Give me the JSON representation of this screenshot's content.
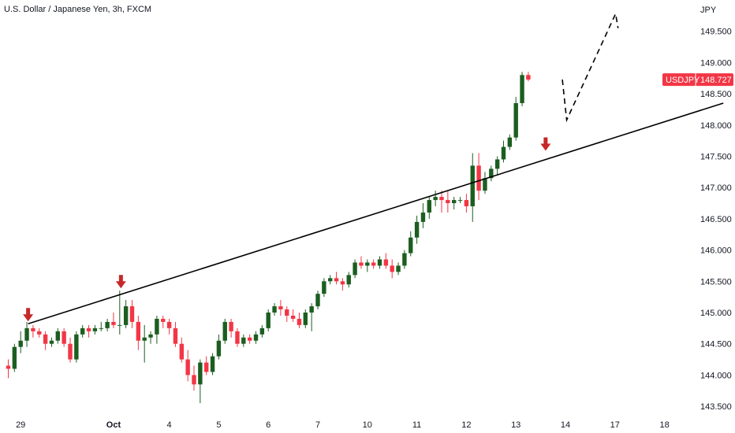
{
  "chart_data": {
    "type": "candlestick",
    "title": "U.S. Dollar / Japanese Yen, 3h, FXCM",
    "currency_label": "JPY",
    "symbol_badge": "USDJPY",
    "last_price_label": "148.727",
    "last_price": 148.727,
    "ylim": [
      143.35,
      150.0
    ],
    "y_ticks": [
      "149.500",
      "149.000",
      "148.500",
      "148.000",
      "147.500",
      "147.000",
      "146.500",
      "146.000",
      "145.500",
      "145.000",
      "144.500",
      "144.000",
      "143.500"
    ],
    "y_tick_values": [
      149.5,
      149.0,
      148.5,
      148.0,
      147.5,
      147.0,
      146.5,
      146.0,
      145.5,
      145.0,
      144.5,
      144.0,
      143.5
    ],
    "x_ticks": [
      "29",
      "Oct",
      "4",
      "5",
      "6",
      "7",
      "10",
      "11",
      "12",
      "13",
      "14",
      "17",
      "18"
    ],
    "x_tick_index": [
      2,
      17,
      26,
      34,
      42,
      50,
      58,
      66,
      74,
      82,
      90,
      98,
      106
    ],
    "colors": {
      "up": "#1b5e20",
      "down": "#f23645",
      "line": "#000000",
      "arrow": "#c62828",
      "badge": "#f23645"
    },
    "candles": [
      [
        144.15,
        144.25,
        143.95,
        144.1
      ],
      [
        144.1,
        144.5,
        144.05,
        144.45
      ],
      [
        144.45,
        144.7,
        144.35,
        144.55
      ],
      [
        144.55,
        144.85,
        144.45,
        144.75
      ],
      [
        144.75,
        144.8,
        144.6,
        144.7
      ],
      [
        144.7,
        144.75,
        144.6,
        144.65
      ],
      [
        144.65,
        144.7,
        144.4,
        144.5
      ],
      [
        144.5,
        144.6,
        144.45,
        144.55
      ],
      [
        144.55,
        144.75,
        144.5,
        144.7
      ],
      [
        144.7,
        144.75,
        144.45,
        144.5
      ],
      [
        144.5,
        144.6,
        144.2,
        144.25
      ],
      [
        144.25,
        144.7,
        144.2,
        144.65
      ],
      [
        144.65,
        144.8,
        144.6,
        144.75
      ],
      [
        144.75,
        144.8,
        144.6,
        144.7
      ],
      [
        144.7,
        144.8,
        144.65,
        144.75
      ],
      [
        144.75,
        144.85,
        144.7,
        144.75
      ],
      [
        144.75,
        144.9,
        144.7,
        144.85
      ],
      [
        144.85,
        145.0,
        144.75,
        144.8
      ],
      [
        144.8,
        145.35,
        144.65,
        144.8
      ],
      [
        144.8,
        145.2,
        144.75,
        145.1
      ],
      [
        145.1,
        145.2,
        144.75,
        144.85
      ],
      [
        144.85,
        144.95,
        144.4,
        144.55
      ],
      [
        144.55,
        144.8,
        144.2,
        144.6
      ],
      [
        144.6,
        144.7,
        144.5,
        144.65
      ],
      [
        144.65,
        144.95,
        144.5,
        144.9
      ],
      [
        144.9,
        144.95,
        144.75,
        144.85
      ],
      [
        144.85,
        144.9,
        144.65,
        144.75
      ],
      [
        144.75,
        144.85,
        144.45,
        144.5
      ],
      [
        144.5,
        144.6,
        144.2,
        144.25
      ],
      [
        144.25,
        144.4,
        143.9,
        144.0
      ],
      [
        144.0,
        144.15,
        143.75,
        143.85
      ],
      [
        143.85,
        144.25,
        143.55,
        144.2
      ],
      [
        144.2,
        144.3,
        144.0,
        144.05
      ],
      [
        144.05,
        144.35,
        144.0,
        144.3
      ],
      [
        144.3,
        144.65,
        144.25,
        144.55
      ],
      [
        144.55,
        144.9,
        144.5,
        144.85
      ],
      [
        144.85,
        144.9,
        144.6,
        144.7
      ],
      [
        144.7,
        144.75,
        144.45,
        144.5
      ],
      [
        144.5,
        144.65,
        144.45,
        144.6
      ],
      [
        144.6,
        144.65,
        144.5,
        144.55
      ],
      [
        144.55,
        144.7,
        144.5,
        144.65
      ],
      [
        144.65,
        144.8,
        144.6,
        144.75
      ],
      [
        144.75,
        145.05,
        144.7,
        145.0
      ],
      [
        145.0,
        145.15,
        144.95,
        145.1
      ],
      [
        145.1,
        145.2,
        144.95,
        145.05
      ],
      [
        145.05,
        145.1,
        144.85,
        144.95
      ],
      [
        144.95,
        145.05,
        144.85,
        144.9
      ],
      [
        144.9,
        145.0,
        144.75,
        144.8
      ],
      [
        144.8,
        145.05,
        144.75,
        145.0
      ],
      [
        145.0,
        145.15,
        144.7,
        145.1
      ],
      [
        145.1,
        145.35,
        145.05,
        145.3
      ],
      [
        145.3,
        145.55,
        145.25,
        145.5
      ],
      [
        145.5,
        145.6,
        145.45,
        145.55
      ],
      [
        145.55,
        145.65,
        145.45,
        145.5
      ],
      [
        145.5,
        145.55,
        145.35,
        145.45
      ],
      [
        145.45,
        145.65,
        145.4,
        145.6
      ],
      [
        145.6,
        145.85,
        145.55,
        145.8
      ],
      [
        145.8,
        145.9,
        145.7,
        145.75
      ],
      [
        145.75,
        145.85,
        145.65,
        145.8
      ],
      [
        145.8,
        145.85,
        145.7,
        145.75
      ],
      [
        145.75,
        145.9,
        145.7,
        145.85
      ],
      [
        145.85,
        145.95,
        145.7,
        145.75
      ],
      [
        145.75,
        145.85,
        145.55,
        145.65
      ],
      [
        145.65,
        145.8,
        145.6,
        145.75
      ],
      [
        145.75,
        146.0,
        145.7,
        145.95
      ],
      [
        145.95,
        146.3,
        145.9,
        146.2
      ],
      [
        146.2,
        146.55,
        146.1,
        146.45
      ],
      [
        146.45,
        146.75,
        146.35,
        146.6
      ],
      [
        146.6,
        146.85,
        146.5,
        146.8
      ],
      [
        146.8,
        146.95,
        146.7,
        146.85
      ],
      [
        146.85,
        146.95,
        146.6,
        146.8
      ],
      [
        146.8,
        146.95,
        146.6,
        146.75
      ],
      [
        146.75,
        146.85,
        146.65,
        146.8
      ],
      [
        146.8,
        146.85,
        146.75,
        146.8
      ],
      [
        146.8,
        146.9,
        146.6,
        146.7
      ],
      [
        146.7,
        147.55,
        146.45,
        147.35
      ],
      [
        147.35,
        147.55,
        146.8,
        146.95
      ],
      [
        146.95,
        147.25,
        146.9,
        147.15
      ],
      [
        147.15,
        147.35,
        147.1,
        147.3
      ],
      [
        147.3,
        147.5,
        147.2,
        147.45
      ],
      [
        147.45,
        147.75,
        147.4,
        147.65
      ],
      [
        147.65,
        147.85,
        147.6,
        147.8
      ],
      [
        147.8,
        148.45,
        147.75,
        148.35
      ],
      [
        148.35,
        148.85,
        148.3,
        148.8
      ],
      [
        148.8,
        148.85,
        148.7,
        148.727
      ]
    ],
    "trendline": {
      "from": {
        "index": 3.2,
        "price": 144.82
      },
      "to": {
        "index": 115.5,
        "price": 148.35
      }
    },
    "arrows": [
      {
        "index": 3.2,
        "price": 144.82
      },
      {
        "index": 18.2,
        "price": 145.35
      },
      {
        "index": 86.8,
        "price": 147.55
      }
    ],
    "projection": [
      {
        "index": 89.5,
        "price": 148.727
      },
      {
        "index": 90.2,
        "price": 148.08
      },
      {
        "index": 98.1,
        "price": 149.78
      },
      {
        "index": 98.5,
        "price": 149.55
      }
    ]
  }
}
